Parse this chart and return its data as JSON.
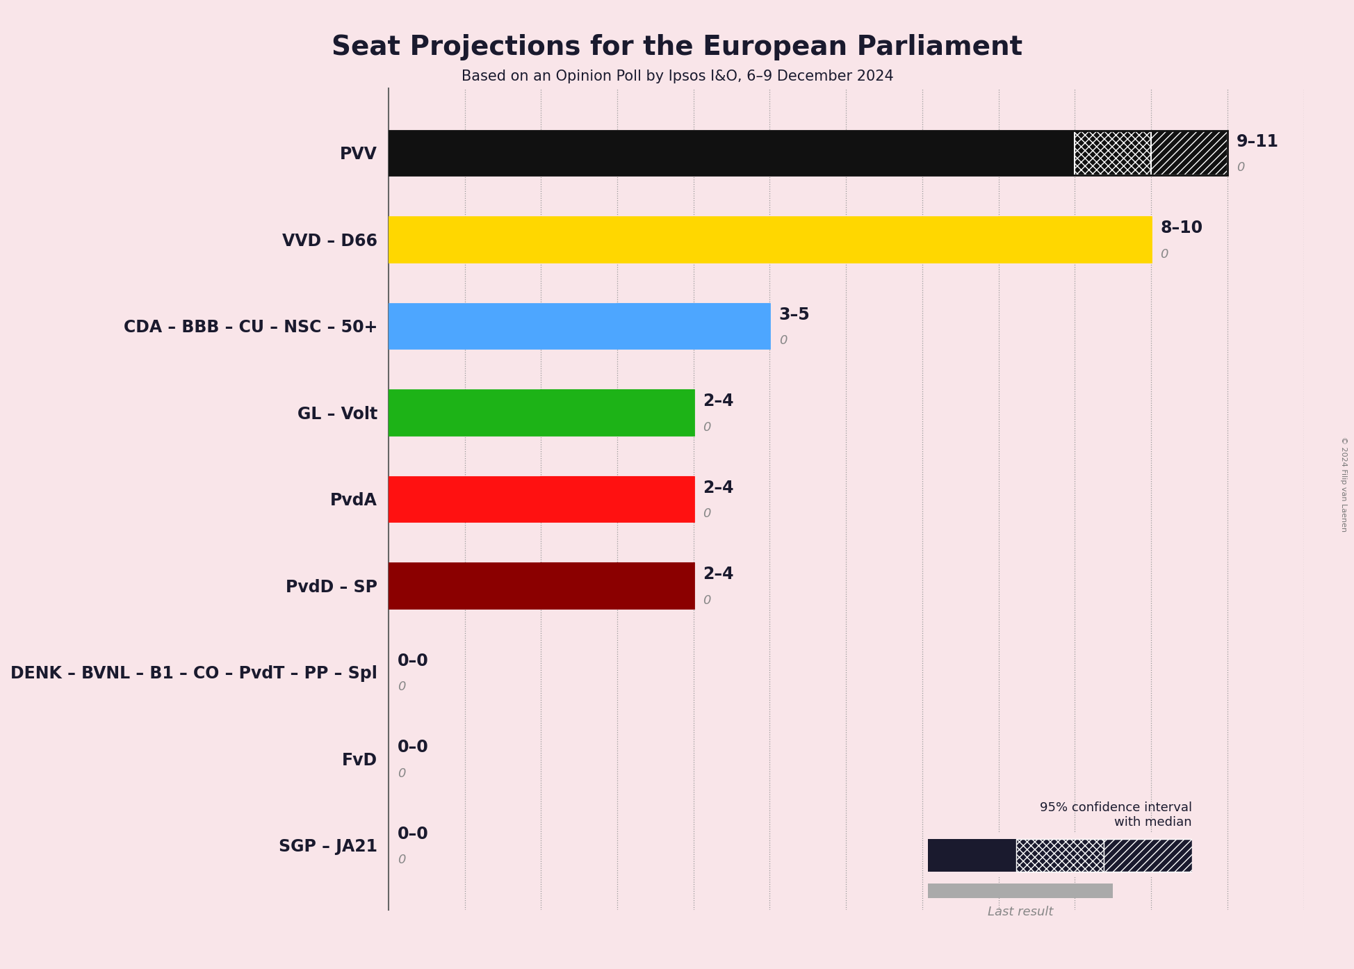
{
  "title": "Seat Projections for the European Parliament",
  "subtitle": "Based on an Opinion Poll by Ipsos I&O, 6–9 December 2024",
  "copyright": "© 2024 Filip van Laenen",
  "background_color": "#f9e5e9",
  "text_color": "#1a1a2e",
  "parties": [
    {
      "name": "PVV",
      "median": 9,
      "low": 9,
      "high": 11,
      "last": 0,
      "color": "#111111",
      "hatch_color": "#ffffff"
    },
    {
      "name": "VVD – D66",
      "median": 8,
      "low": 8,
      "high": 10,
      "last": 0,
      "color": "#FFD700",
      "hatch_color": "#FFD700"
    },
    {
      "name": "CDA – BBB – CU – NSC – 50+",
      "median": 3,
      "low": 3,
      "high": 5,
      "last": 0,
      "color": "#4da6ff",
      "hatch_color": "#4da6ff"
    },
    {
      "name": "GL – Volt",
      "median": 2,
      "low": 2,
      "high": 4,
      "last": 0,
      "color": "#1db317",
      "hatch_color": "#1db317"
    },
    {
      "name": "PvdA",
      "median": 2,
      "low": 2,
      "high": 4,
      "last": 0,
      "color": "#ff1111",
      "hatch_color": "#ff1111"
    },
    {
      "name": "PvdD – SP",
      "median": 2,
      "low": 2,
      "high": 4,
      "last": 0,
      "color": "#8b0000",
      "hatch_color": "#8b0000"
    },
    {
      "name": "DENK – BVNL – B1 – CO – PvdT – PP – Spl",
      "median": 0,
      "low": 0,
      "high": 0,
      "last": 0,
      "color": "#111111",
      "hatch_color": "#ffffff"
    },
    {
      "name": "FvD",
      "median": 0,
      "low": 0,
      "high": 0,
      "last": 0,
      "color": "#111111",
      "hatch_color": "#ffffff"
    },
    {
      "name": "SGP – JA21",
      "median": 0,
      "low": 0,
      "high": 0,
      "last": 0,
      "color": "#111111",
      "hatch_color": "#ffffff"
    }
  ],
  "xlim_max": 12,
  "bar_height": 0.52,
  "label_fontsize": 17,
  "sublabel_fontsize": 13,
  "ytick_fontsize": 17,
  "title_fontsize": 28,
  "subtitle_fontsize": 15
}
